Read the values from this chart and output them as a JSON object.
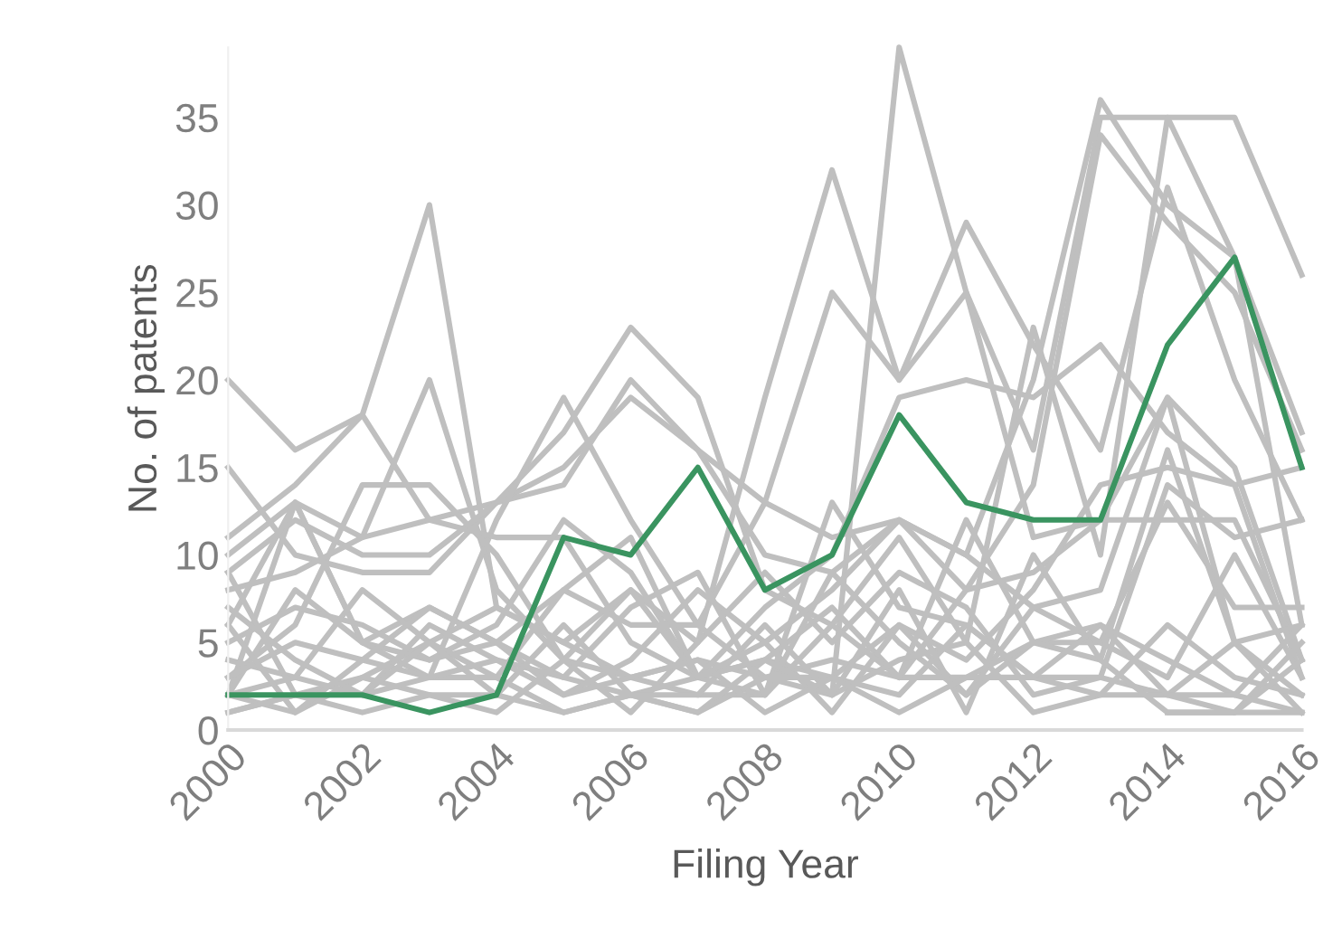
{
  "chart_data": {
    "type": "line",
    "ylabel": "No. of patents",
    "xlabel": "Filing Year",
    "x": [
      2000,
      2001,
      2002,
      2003,
      2004,
      2005,
      2006,
      2007,
      2008,
      2009,
      2010,
      2011,
      2012,
      2013,
      2014,
      2015,
      2016
    ],
    "xlim": [
      2000,
      2016
    ],
    "xticks": [
      2000,
      2002,
      2004,
      2006,
      2008,
      2010,
      2012,
      2014,
      2016
    ],
    "ylim": [
      0,
      39
    ],
    "yticks": [
      0,
      5,
      10,
      15,
      20,
      25,
      30,
      35
    ],
    "grid": false,
    "legend": false,
    "marker": "none",
    "line_style": "solid",
    "series": [
      {
        "color": "#bfbfbf",
        "values": [
          20,
          16,
          18,
          12,
          13,
          15,
          19,
          16,
          13,
          11,
          12,
          10,
          20,
          36,
          30,
          27,
          17
        ]
      },
      {
        "color": "#bfbfbf",
        "values": [
          11,
          14,
          18,
          30,
          7,
          5,
          3,
          4,
          3,
          2,
          39,
          25,
          16,
          35,
          35,
          35,
          26
        ]
      },
      {
        "color": "#bfbfbf",
        "values": [
          10,
          13,
          11,
          20,
          8,
          4,
          8,
          5,
          19,
          32,
          20,
          29,
          22,
          16,
          31,
          20,
          12
        ]
      },
      {
        "color": "#bfbfbf",
        "values": [
          15,
          10,
          9,
          9,
          13,
          17,
          23,
          19,
          8,
          6,
          11,
          5,
          23,
          10,
          35,
          27,
          6
        ]
      },
      {
        "color": "#bfbfbf",
        "values": [
          9,
          12,
          10,
          10,
          13,
          14,
          20,
          16,
          10,
          9,
          12,
          8,
          14,
          34,
          29,
          25,
          16
        ]
      },
      {
        "color": "#bfbfbf",
        "values": [
          2,
          13,
          5,
          3,
          12,
          19,
          12,
          6,
          13,
          25,
          20,
          25,
          11,
          12,
          19,
          15,
          4
        ]
      },
      {
        "color": "#bfbfbf",
        "values": [
          8,
          9,
          11,
          12,
          11,
          11,
          5,
          3,
          7,
          10,
          19,
          20,
          19,
          22,
          17,
          14,
          15
        ]
      },
      {
        "color": "#bfbfbf",
        "values": [
          3,
          6,
          14,
          14,
          10,
          4,
          3,
          2,
          2,
          13,
          7,
          6,
          3,
          3,
          14,
          11,
          12
        ]
      },
      {
        "color": "#bfbfbf",
        "values": [
          2,
          8,
          5,
          7,
          5,
          3,
          2,
          1,
          4,
          7,
          3,
          8,
          9,
          12,
          12,
          12,
          4
        ]
      },
      {
        "color": "#bfbfbf",
        "values": [
          6,
          13,
          5,
          4,
          6,
          12,
          9,
          3,
          4,
          3,
          6,
          4,
          8,
          14,
          15,
          14,
          3
        ]
      },
      {
        "color": "#bfbfbf",
        "values": [
          1,
          2,
          1,
          2,
          1,
          4,
          1,
          5,
          9,
          5,
          9,
          7,
          2,
          3,
          2,
          5,
          1
        ]
      },
      {
        "color": "#bfbfbf",
        "values": [
          5,
          7,
          6,
          4,
          5,
          2,
          4,
          8,
          5,
          1,
          6,
          2,
          5,
          5,
          13,
          7,
          7
        ]
      },
      {
        "color": "#bfbfbf",
        "values": [
          2,
          1,
          3,
          5,
          7,
          5,
          8,
          3,
          2,
          9,
          5,
          2,
          7,
          5,
          3,
          10,
          3
        ]
      },
      {
        "color": "#bfbfbf",
        "values": [
          4,
          3,
          8,
          5,
          3,
          8,
          6,
          6,
          3,
          4,
          3,
          3,
          5,
          6,
          4,
          2,
          6
        ]
      },
      {
        "color": "#bfbfbf",
        "values": [
          7,
          4,
          2,
          6,
          4,
          3,
          7,
          9,
          2,
          6,
          3,
          12,
          5,
          4,
          16,
          5,
          2
        ]
      },
      {
        "color": "#bfbfbf",
        "values": [
          3,
          5,
          4,
          3,
          3,
          1,
          2,
          3,
          4,
          2,
          4,
          5,
          1,
          2,
          2,
          1,
          5
        ]
      },
      {
        "color": "#bfbfbf",
        "values": [
          9,
          2,
          3,
          2,
          2,
          1,
          2,
          1,
          3,
          3,
          2,
          6,
          3,
          2,
          6,
          3,
          2
        ]
      },
      {
        "color": "#bfbfbf",
        "values": [
          2,
          3,
          2,
          5,
          2,
          6,
          2,
          2,
          6,
          2,
          8,
          1,
          10,
          4,
          1,
          1,
          4
        ]
      },
      {
        "color": "#bfbfbf",
        "values": [
          1,
          2,
          2,
          3,
          4,
          2,
          3,
          4,
          1,
          3,
          1,
          3,
          3,
          6,
          2,
          2,
          1
        ]
      },
      {
        "color": "#bfbfbf",
        "values": [
          null,
          null,
          null,
          null,
          null,
          null,
          null,
          null,
          null,
          null,
          null,
          null,
          null,
          null,
          1,
          1,
          1
        ]
      },
      {
        "color": "#bfbfbf",
        "values": [
          6,
          1,
          4,
          7,
          5,
          8,
          11,
          3,
          5,
          8,
          12,
          10,
          7,
          8,
          19,
          5,
          6
        ]
      },
      {
        "color": "#3a9460",
        "values": [
          2,
          2,
          2,
          1,
          2,
          11,
          10,
          15,
          8,
          10,
          18,
          13,
          12,
          12,
          22,
          27,
          15
        ]
      }
    ]
  }
}
